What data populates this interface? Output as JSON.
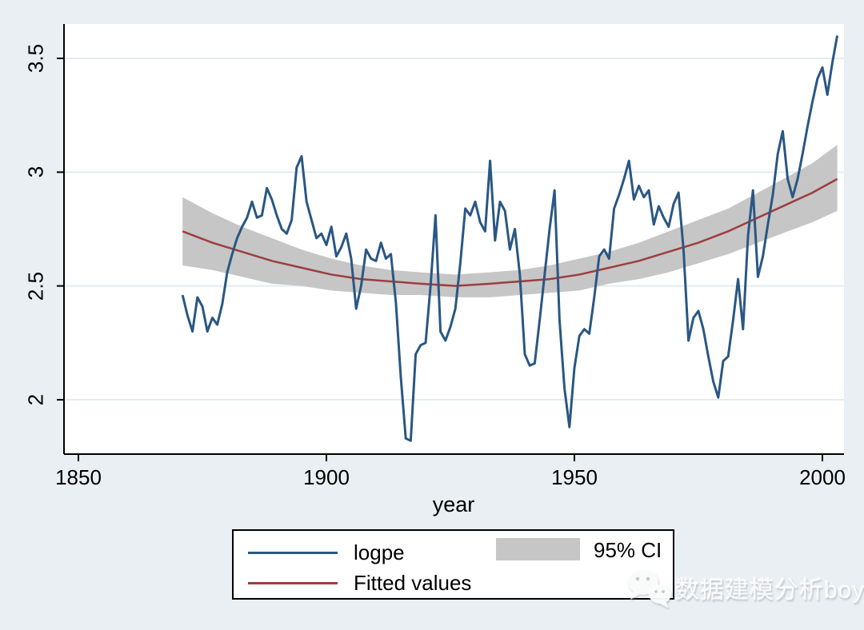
{
  "colors": {
    "background": "#e9eff3",
    "plot_bg": "#ffffff",
    "grid": "#e2edf2",
    "axis": "#000000",
    "logpe_line": "#2a5783",
    "fitted_line": "#9c3e3e",
    "ci_band": "#c6c6c6",
    "watermark_text": "#fcfcfc"
  },
  "axes": {
    "x": {
      "label": "year",
      "tick_labels": [
        "1850",
        "1900",
        "1950",
        "2000"
      ]
    },
    "y": {
      "tick_labels": [
        "2",
        "2.5",
        "3",
        "3.5"
      ]
    }
  },
  "legend": {
    "entries": [
      {
        "key": "line",
        "label": "logpe"
      },
      {
        "key": "line",
        "label": "Fitted values"
      },
      {
        "key": "area",
        "label": "95% CI"
      }
    ]
  },
  "watermark": {
    "icon": "wechat-icon",
    "text": "数据建模分析boy"
  },
  "chart_data": {
    "type": "line",
    "title": "",
    "xlabel": "year",
    "ylabel": "",
    "x_ticks": [
      1850,
      1900,
      1950,
      2000
    ],
    "y_ticks": [
      2,
      2.5,
      3,
      3.5
    ],
    "xlim": [
      1847,
      2004.5
    ],
    "ylim": [
      1.76,
      3.65
    ],
    "grid": "horizontal",
    "legend_position": "bottom",
    "series": [
      {
        "name": "logpe",
        "type": "line",
        "start_year": 1871,
        "step": 1,
        "values": [
          2.46,
          2.37,
          2.3,
          2.45,
          2.41,
          2.3,
          2.36,
          2.33,
          2.42,
          2.56,
          2.64,
          2.71,
          2.76,
          2.8,
          2.87,
          2.8,
          2.81,
          2.93,
          2.88,
          2.81,
          2.75,
          2.73,
          2.79,
          3.02,
          3.07,
          2.87,
          2.79,
          2.71,
          2.73,
          2.68,
          2.76,
          2.63,
          2.67,
          2.73,
          2.62,
          2.4,
          2.5,
          2.66,
          2.62,
          2.61,
          2.69,
          2.62,
          2.64,
          2.43,
          2.1,
          1.83,
          1.82,
          2.2,
          2.24,
          2.25,
          2.5,
          2.81,
          2.3,
          2.26,
          2.32,
          2.4,
          2.6,
          2.84,
          2.81,
          2.87,
          2.78,
          2.74,
          3.05,
          2.7,
          2.87,
          2.83,
          2.66,
          2.75,
          2.55,
          2.2,
          2.15,
          2.16,
          2.35,
          2.55,
          2.75,
          2.92,
          2.35,
          2.05,
          1.88,
          2.14,
          2.28,
          2.31,
          2.29,
          2.45,
          2.63,
          2.66,
          2.62,
          2.84,
          2.9,
          2.97,
          3.05,
          2.88,
          2.94,
          2.89,
          2.92,
          2.77,
          2.85,
          2.8,
          2.76,
          2.86,
          2.91,
          2.66,
          2.26,
          2.36,
          2.39,
          2.31,
          2.19,
          2.08,
          2.01,
          2.17,
          2.19,
          2.35,
          2.53,
          2.31,
          2.72,
          2.92,
          2.54,
          2.63,
          2.77,
          2.9,
          3.08,
          3.18,
          2.97,
          2.89,
          2.97,
          3.08,
          3.2,
          3.31,
          3.41,
          3.46,
          3.34,
          3.48,
          3.6
        ]
      },
      {
        "name": "Fitted values",
        "type": "line",
        "years": [
          1871,
          1877,
          1883,
          1889,
          1895,
          1901,
          1907,
          1913,
          1919,
          1926,
          1933,
          1939,
          1945,
          1951,
          1957,
          1963,
          1969,
          1975,
          1981,
          1987,
          1993,
          1998,
          2003
        ],
        "values": [
          2.74,
          2.69,
          2.65,
          2.61,
          2.58,
          2.55,
          2.53,
          2.52,
          2.51,
          2.5,
          2.51,
          2.52,
          2.53,
          2.55,
          2.58,
          2.61,
          2.65,
          2.69,
          2.74,
          2.8,
          2.86,
          2.91,
          2.97
        ]
      },
      {
        "name": "95% CI",
        "type": "band",
        "years": [
          1871,
          1877,
          1883,
          1889,
          1895,
          1901,
          1907,
          1913,
          1919,
          1926,
          1933,
          1939,
          1945,
          1951,
          1957,
          1963,
          1969,
          1975,
          1981,
          1987,
          1993,
          1998,
          2003
        ],
        "lower": [
          2.59,
          2.57,
          2.54,
          2.51,
          2.5,
          2.48,
          2.47,
          2.46,
          2.46,
          2.45,
          2.45,
          2.46,
          2.47,
          2.48,
          2.51,
          2.53,
          2.56,
          2.6,
          2.64,
          2.69,
          2.74,
          2.78,
          2.83
        ],
        "upper": [
          2.89,
          2.82,
          2.76,
          2.71,
          2.66,
          2.62,
          2.59,
          2.57,
          2.56,
          2.55,
          2.56,
          2.57,
          2.59,
          2.62,
          2.65,
          2.69,
          2.74,
          2.79,
          2.84,
          2.91,
          2.98,
          3.04,
          3.12
        ]
      }
    ]
  }
}
